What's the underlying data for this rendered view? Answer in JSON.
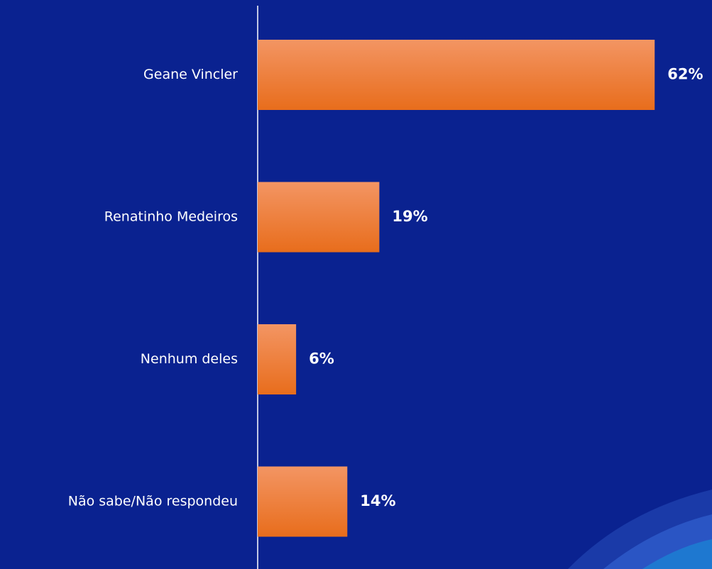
{
  "chart_data": {
    "type": "bar",
    "orientation": "horizontal",
    "categories": [
      "Geane Vincler",
      "Renatinho Medeiros",
      "Nenhum deles",
      "Não sabe/Não respondeu"
    ],
    "values": [
      62,
      19,
      6,
      14
    ],
    "value_labels": [
      "62%",
      "19%",
      "6%",
      "14%"
    ],
    "color": "#ee7b2c"
  }
}
